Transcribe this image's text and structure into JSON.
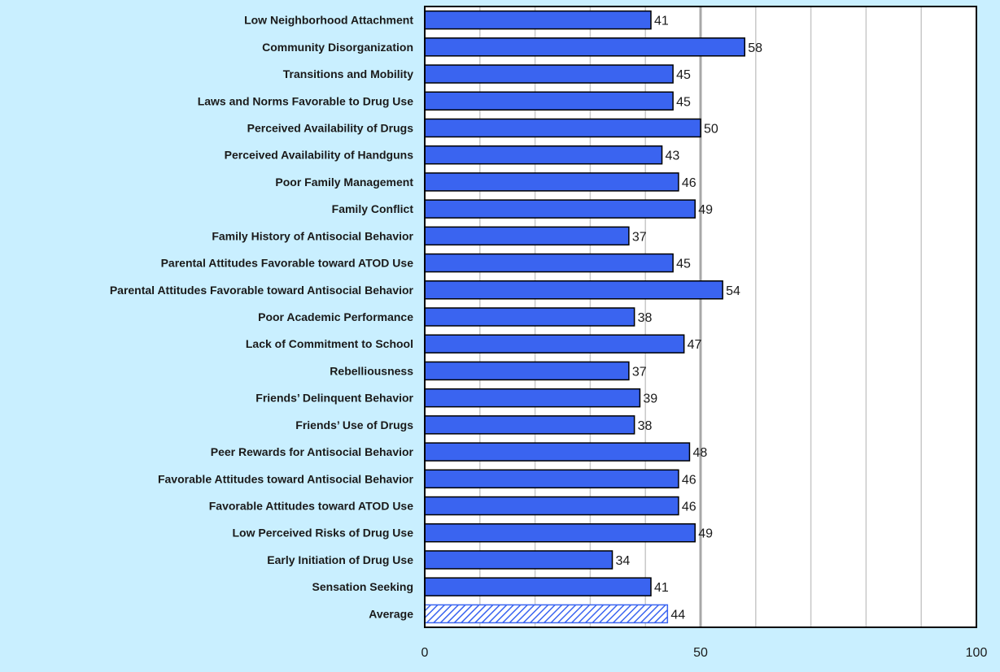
{
  "chart_data": {
    "type": "bar",
    "orientation": "horizontal",
    "categories": [
      "Low Neighborhood Attachment",
      "Community Disorganization",
      "Transitions and Mobility",
      "Laws and Norms Favorable to Drug Use",
      "Perceived Availability of Drugs",
      "Perceived Availability of Handguns",
      "Poor Family Management",
      "Family Conflict",
      "Family History of Antisocial Behavior",
      "Parental Attitudes Favorable toward ATOD Use",
      "Parental Attitudes Favorable toward Antisocial Behavior",
      "Poor Academic Performance",
      "Lack of Commitment to School",
      "Rebelliousness",
      "Friends' Delinquent Behavior",
      "Friends' Use of Drugs",
      "Peer Rewards for Antisocial Behavior",
      "Favorable Attitudes toward Antisocial Behavior",
      "Favorable Attitudes toward ATOD Use",
      "Low Perceived Risks of Drug Use",
      "Early Initiation of Drug Use",
      "Sensation Seeking",
      "Average"
    ],
    "values": [
      41,
      58,
      45,
      45,
      50,
      43,
      46,
      49,
      37,
      45,
      54,
      38,
      47,
      37,
      39,
      38,
      48,
      46,
      46,
      49,
      34,
      41,
      44
    ],
    "value_labels": [
      "41",
      "58",
      "45",
      "45",
      "50",
      "43",
      "46",
      "49",
      "37",
      "45",
      "54",
      "38",
      "47",
      "37",
      "39",
      "38",
      "48",
      "46",
      "46",
      "49",
      "34",
      "41",
      "44"
    ],
    "x_ticks": [
      0,
      50,
      100
    ],
    "x_tick_labels": [
      "0",
      "50",
      "100"
    ],
    "xlim": [
      0,
      100
    ],
    "gridlines": [
      10,
      20,
      30,
      40,
      50,
      60,
      70,
      80,
      90
    ],
    "reference_line": 50,
    "grid": true,
    "title": "",
    "xlabel": "",
    "ylabel": "",
    "colors": {
      "background": "#c9efff",
      "plot_area": "#ffffff",
      "bar_fill": "#3a64f0",
      "bar_stroke": "#000000",
      "average_fill": "#ffffff",
      "average_hatch": "#3a64f0",
      "grid": "#c8c8c8",
      "reference": "#a8a8a8"
    }
  }
}
